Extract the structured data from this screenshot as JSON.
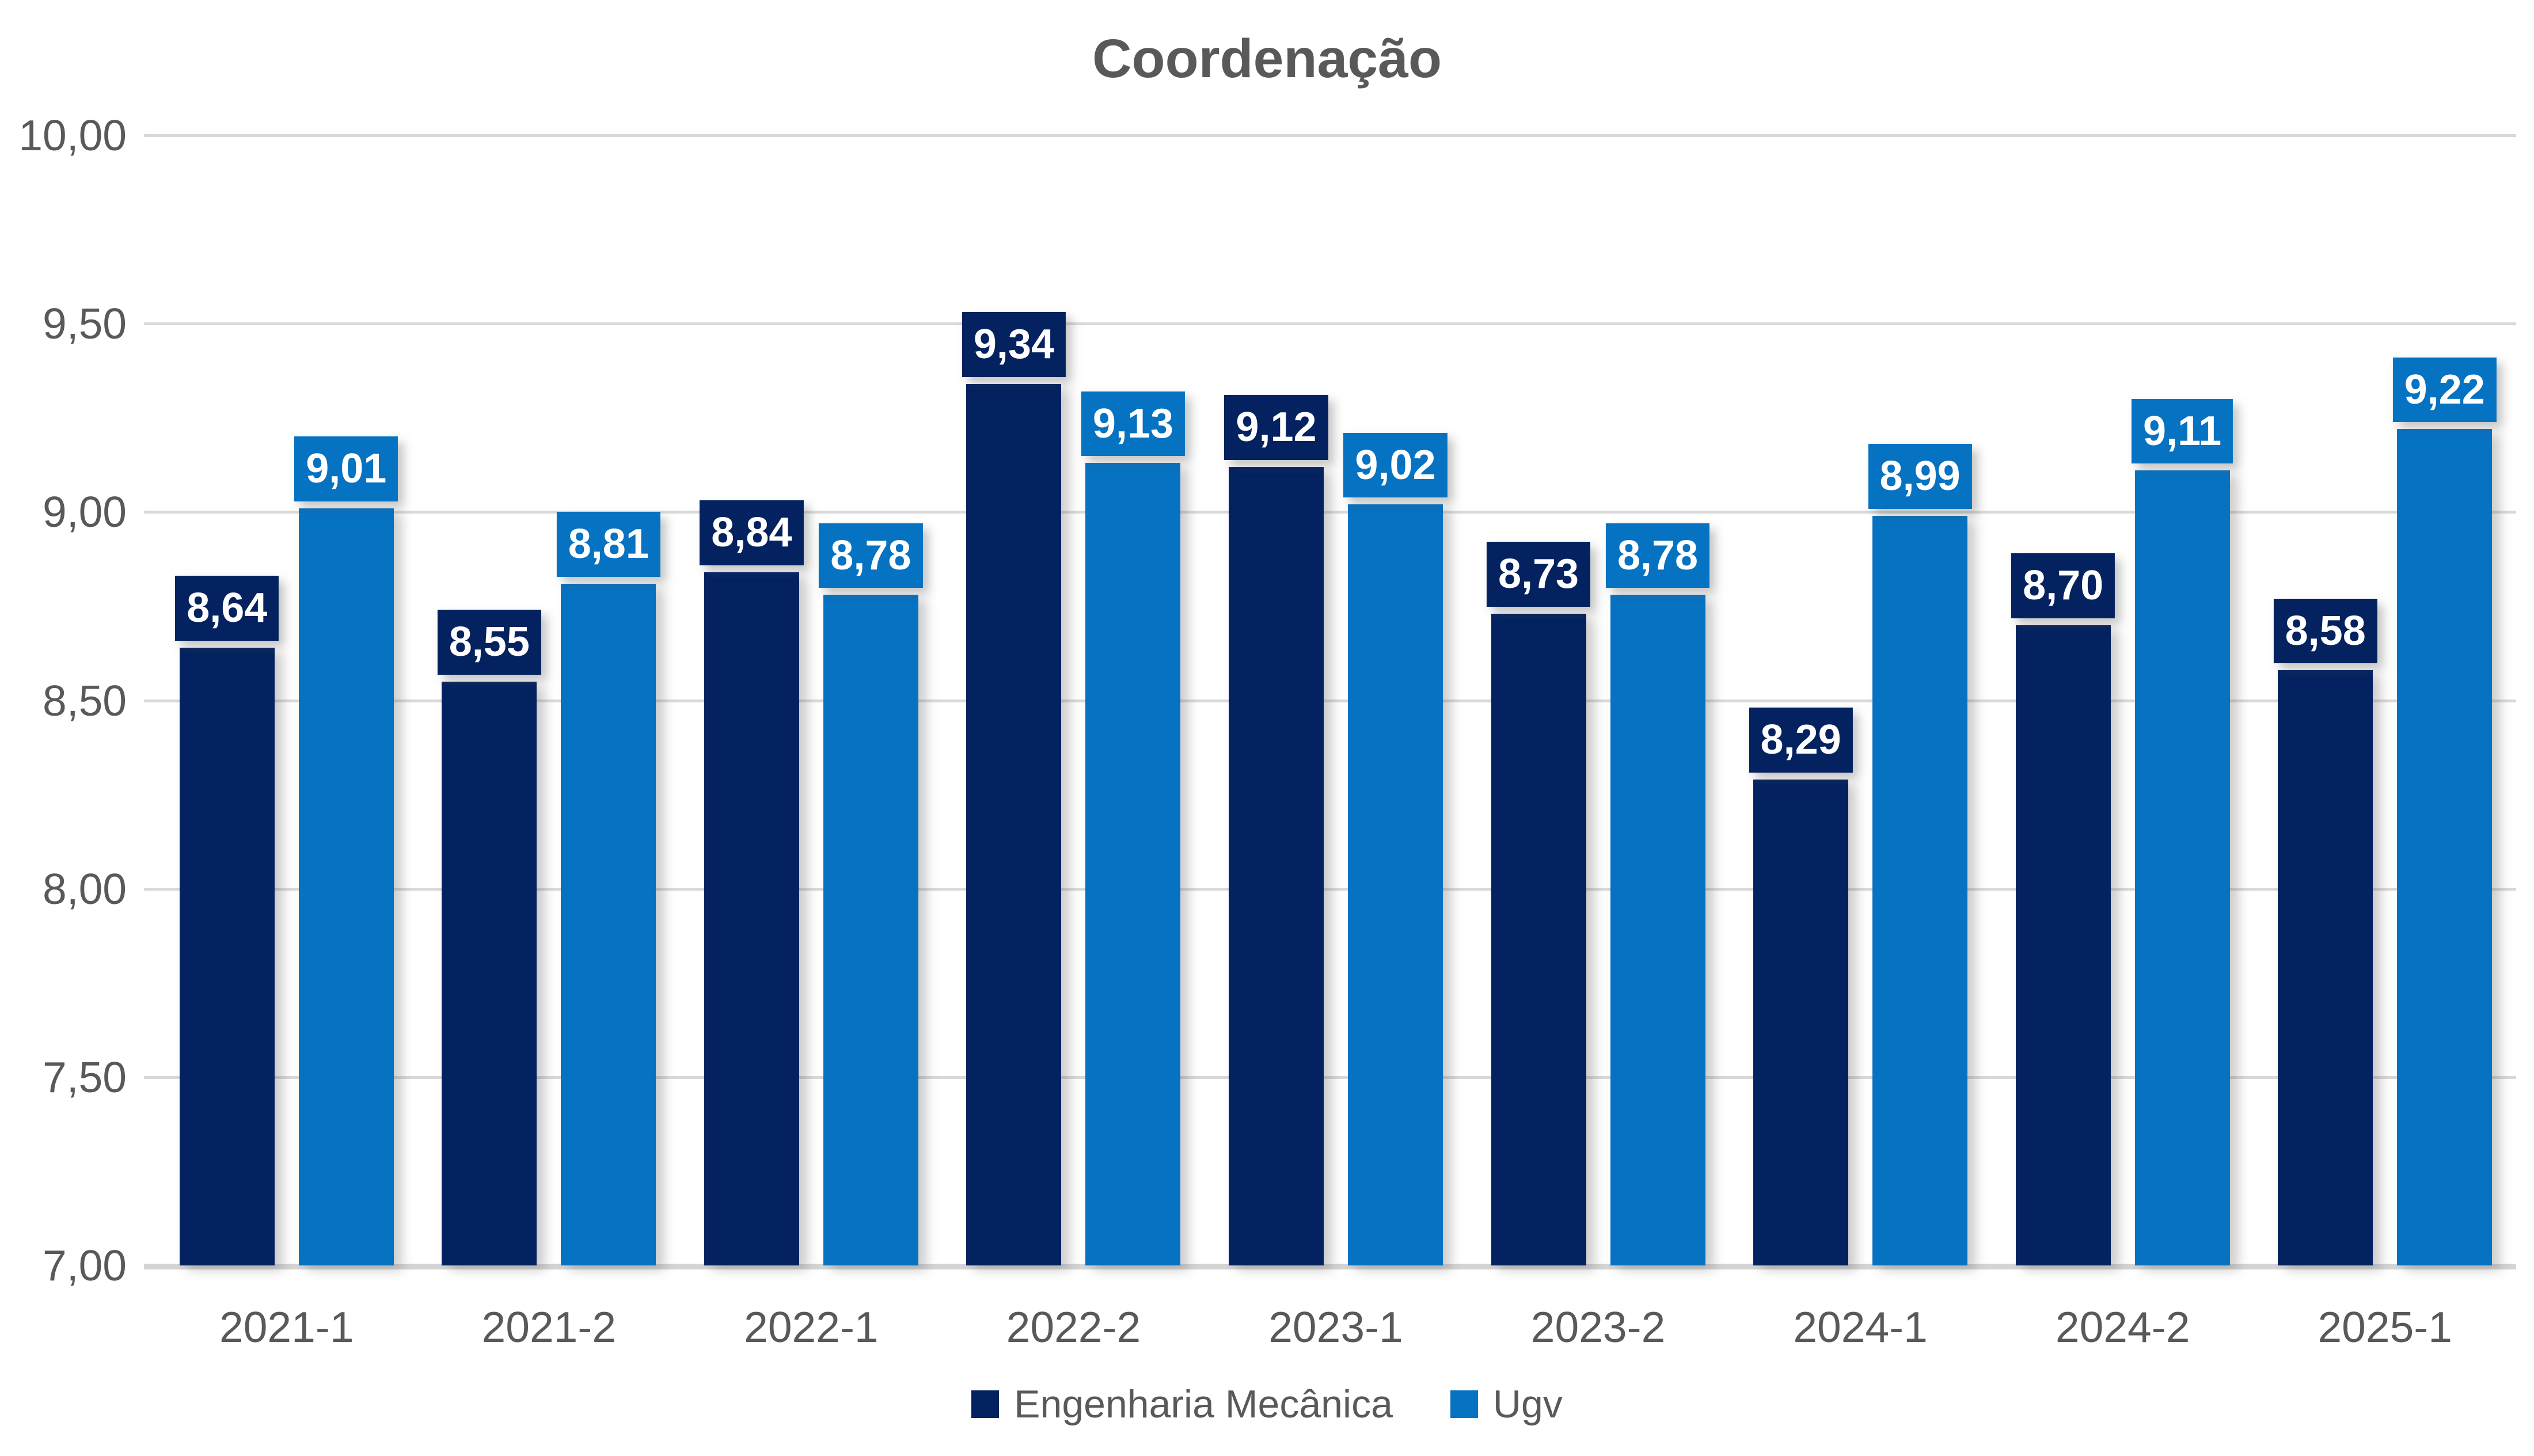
{
  "title": "Coordenação",
  "chart_data": {
    "type": "bar",
    "title": "Coordenação",
    "categories": [
      "2021-1",
      "2021-2",
      "2022-1",
      "2022-2",
      "2023-1",
      "2023-2",
      "2024-1",
      "2024-2",
      "2025-1"
    ],
    "series": [
      {
        "name": "Engenharia Mecânica",
        "color": "#04225f",
        "values": [
          8.64,
          8.55,
          8.84,
          9.34,
          9.12,
          8.73,
          8.29,
          8.7,
          8.58
        ],
        "labels": [
          "8,64",
          "8,55",
          "8,84",
          "9,34",
          "9,12",
          "8,73",
          "8,29",
          "8,70",
          "8,58"
        ]
      },
      {
        "name": "Ugv",
        "color": "#0672c2",
        "values": [
          9.01,
          8.81,
          8.78,
          9.13,
          9.02,
          8.78,
          8.99,
          9.11,
          9.22
        ],
        "labels": [
          "9,01",
          "8,81",
          "8,78",
          "9,13",
          "9,02",
          "8,78",
          "8,99",
          "9,11",
          "9,22"
        ]
      }
    ],
    "ylim": [
      7,
      10
    ],
    "ytick_step": 0.5,
    "ytick_labels": [
      "10,00",
      "9,50",
      "9,00",
      "8,50",
      "8,00",
      "7,50",
      "7,00"
    ],
    "grid": true,
    "legend_position": "bottom",
    "gridline_color": "#d9d9d9",
    "axis_line_color": "#d4d4d4",
    "text_color": "#595959",
    "value_label_text_color": "#ffffff",
    "background_color": "#ffffff"
  }
}
